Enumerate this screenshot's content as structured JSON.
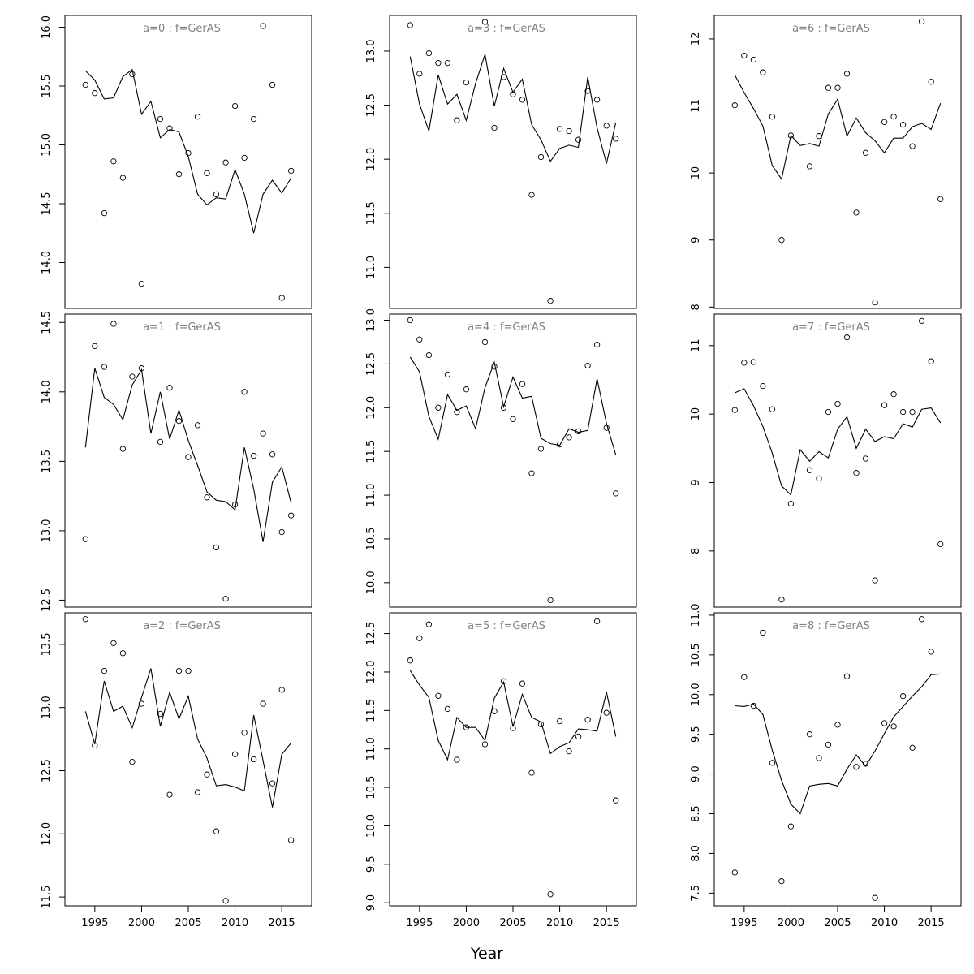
{
  "figure": {
    "xlabel": "Year"
  },
  "style": {
    "line_color": "#000000",
    "point_color": "#000000",
    "panel_title_color": "#808080",
    "frame_color": "#000000"
  },
  "chart_data": [
    {
      "type": "line",
      "title": "a=0  :  f=GerAS",
      "x": [
        1994,
        1995,
        1996,
        1997,
        1998,
        1999,
        2000,
        2001,
        2002,
        2003,
        2004,
        2005,
        2006,
        2007,
        2008,
        2009,
        2010,
        2011,
        2012,
        2013,
        2014,
        2015,
        2016
      ],
      "series": [
        {
          "kind": "points",
          "values": [
            15.51,
            15.44,
            14.42,
            14.86,
            14.72,
            15.6,
            13.82,
            null,
            15.22,
            15.14,
            14.75,
            14.93,
            15.24,
            14.76,
            14.58,
            14.85,
            15.33,
            14.89,
            15.22,
            16.01,
            15.51,
            13.7,
            14.78
          ]
        },
        {
          "kind": "line",
          "values": [
            15.63,
            15.55,
            15.39,
            15.4,
            15.58,
            15.64,
            15.26,
            15.37,
            15.06,
            15.13,
            15.11,
            14.9,
            14.58,
            14.49,
            14.55,
            14.54,
            14.79,
            14.58,
            14.25,
            14.58,
            14.7,
            14.59,
            14.72
          ]
        }
      ],
      "xlim": [
        1991.8,
        2018.2
      ],
      "ylim": [
        13.61,
        16.1
      ],
      "yticks": [
        "14.0",
        "14.5",
        "15.0",
        "15.5",
        "16.0"
      ],
      "xticks": [],
      "grid": false
    },
    {
      "type": "line",
      "title": "a=3  :  f=GerAS",
      "x": [
        1994,
        1995,
        1996,
        1997,
        1998,
        1999,
        2000,
        2001,
        2002,
        2003,
        2004,
        2005,
        2006,
        2007,
        2008,
        2009,
        2010,
        2011,
        2012,
        2013,
        2014,
        2015,
        2016
      ],
      "series": [
        {
          "kind": "points",
          "values": [
            13.24,
            12.79,
            12.98,
            12.89,
            12.89,
            12.36,
            12.71,
            null,
            13.27,
            12.29,
            12.76,
            12.6,
            12.55,
            11.67,
            12.02,
            10.69,
            12.28,
            12.26,
            12.18,
            12.63,
            12.55,
            12.31,
            12.19
          ]
        },
        {
          "kind": "line",
          "values": [
            12.95,
            12.51,
            12.26,
            12.78,
            12.51,
            12.6,
            12.36,
            12.7,
            12.97,
            12.49,
            12.84,
            12.62,
            12.74,
            12.32,
            12.18,
            11.98,
            12.1,
            12.13,
            12.11,
            12.76,
            12.29,
            11.96,
            12.34
          ]
        }
      ],
      "xlim": [
        1991.8,
        2018.2
      ],
      "ylim": [
        10.62,
        13.33
      ],
      "yticks": [
        "11.0",
        "11.5",
        "12.0",
        "12.5",
        "13.0"
      ],
      "xticks": [],
      "grid": false
    },
    {
      "type": "line",
      "title": "a=6  :  f=GerAS",
      "x": [
        1994,
        1995,
        1996,
        1997,
        1998,
        1999,
        2000,
        2001,
        2002,
        2003,
        2004,
        2005,
        2006,
        2007,
        2008,
        2009,
        2010,
        2011,
        2012,
        2013,
        2014,
        2015,
        2016
      ],
      "series": [
        {
          "kind": "points",
          "values": [
            11.01,
            11.75,
            11.69,
            11.5,
            10.84,
            9.0,
            10.56,
            null,
            10.1,
            10.55,
            11.27,
            11.27,
            11.48,
            9.41,
            10.3,
            8.07,
            10.76,
            10.84,
            10.72,
            10.4,
            12.26,
            11.36,
            9.61
          ]
        },
        {
          "kind": "line",
          "values": [
            11.46,
            11.2,
            10.96,
            10.7,
            10.11,
            9.91,
            10.56,
            10.41,
            10.44,
            10.4,
            10.88,
            11.1,
            10.55,
            10.82,
            10.6,
            10.48,
            10.3,
            10.52,
            10.52,
            10.69,
            10.74,
            10.65,
            11.04
          ]
        }
      ],
      "xlim": [
        1991.8,
        2018.2
      ],
      "ylim": [
        7.98,
        12.35
      ],
      "yticks": [
        "8",
        "9",
        "10",
        "11",
        "12"
      ],
      "xticks": [],
      "grid": false
    },
    {
      "type": "line",
      "title": "a=1  :  f=GerAS",
      "x": [
        1994,
        1995,
        1996,
        1997,
        1998,
        1999,
        2000,
        2001,
        2002,
        2003,
        2004,
        2005,
        2006,
        2007,
        2008,
        2009,
        2010,
        2011,
        2012,
        2013,
        2014,
        2015,
        2016
      ],
      "series": [
        {
          "kind": "points",
          "values": [
            12.94,
            14.33,
            14.18,
            14.49,
            13.59,
            14.11,
            14.17,
            null,
            13.64,
            14.03,
            13.79,
            13.53,
            13.76,
            13.24,
            12.88,
            12.51,
            13.19,
            14.0,
            13.54,
            13.7,
            13.55,
            12.99,
            13.11
          ]
        },
        {
          "kind": "line",
          "values": [
            13.6,
            14.17,
            13.96,
            13.91,
            13.8,
            14.05,
            14.16,
            13.7,
            14.0,
            13.66,
            13.87,
            13.65,
            13.47,
            13.28,
            13.22,
            13.21,
            13.15,
            13.6,
            13.3,
            12.92,
            13.35,
            13.46,
            13.2
          ]
        }
      ],
      "xlim": [
        1991.8,
        2018.2
      ],
      "ylim": [
        12.45,
        14.56
      ],
      "yticks": [
        "12.5",
        "13.0",
        "13.5",
        "14.0",
        "14.5"
      ],
      "xticks": [],
      "grid": false
    },
    {
      "type": "line",
      "title": "a=4  :  f=GerAS",
      "x": [
        1994,
        1995,
        1996,
        1997,
        1998,
        1999,
        2000,
        2001,
        2002,
        2003,
        2004,
        2005,
        2006,
        2007,
        2008,
        2009,
        2010,
        2011,
        2012,
        2013,
        2014,
        2015,
        2016
      ],
      "series": [
        {
          "kind": "points",
          "values": [
            13.0,
            12.78,
            12.6,
            12.0,
            12.38,
            11.95,
            12.21,
            null,
            12.75,
            12.47,
            12.0,
            11.87,
            12.27,
            11.25,
            11.53,
            9.8,
            11.58,
            11.66,
            11.73,
            12.48,
            12.72,
            11.77,
            11.02
          ]
        },
        {
          "kind": "line",
          "values": [
            12.58,
            12.41,
            11.9,
            11.64,
            12.15,
            11.97,
            12.02,
            11.76,
            12.23,
            12.52,
            12.01,
            12.35,
            12.11,
            12.13,
            11.65,
            11.59,
            11.57,
            11.76,
            11.72,
            11.74,
            12.33,
            11.82,
            11.46
          ]
        }
      ],
      "xlim": [
        1991.8,
        2018.2
      ],
      "ylim": [
        9.72,
        13.07
      ],
      "yticks": [
        "10.0",
        "10.5",
        "11.0",
        "11.5",
        "12.0",
        "12.5",
        "13.0"
      ],
      "xticks": [],
      "grid": false
    },
    {
      "type": "line",
      "title": "a=7  :  f=GerAS",
      "x": [
        1994,
        1995,
        1996,
        1997,
        1998,
        1999,
        2000,
        2001,
        2002,
        2003,
        2004,
        2005,
        2006,
        2007,
        2008,
        2009,
        2010,
        2011,
        2012,
        2013,
        2014,
        2015,
        2016
      ],
      "series": [
        {
          "kind": "points",
          "values": [
            10.06,
            10.75,
            10.76,
            10.41,
            10.07,
            7.29,
            8.69,
            null,
            9.18,
            9.06,
            10.03,
            10.15,
            11.12,
            9.14,
            9.35,
            7.57,
            10.13,
            10.29,
            10.03,
            10.03,
            11.36,
            10.77,
            8.1
          ]
        },
        {
          "kind": "line",
          "values": [
            10.31,
            10.37,
            10.12,
            9.82,
            9.43,
            8.95,
            8.82,
            9.48,
            9.31,
            9.45,
            9.36,
            9.78,
            9.96,
            9.5,
            9.78,
            9.6,
            9.67,
            9.64,
            9.86,
            9.81,
            10.07,
            10.09,
            9.87
          ]
        }
      ],
      "xlim": [
        1991.8,
        2018.2
      ],
      "ylim": [
        7.18,
        11.46
      ],
      "yticks": [
        "8",
        "9",
        "10",
        "11"
      ],
      "xticks": [],
      "grid": false
    },
    {
      "type": "line",
      "title": "a=2  :  f=GerAS",
      "x": [
        1994,
        1995,
        1996,
        1997,
        1998,
        1999,
        2000,
        2001,
        2002,
        2003,
        2004,
        2005,
        2006,
        2007,
        2008,
        2009,
        2010,
        2011,
        2012,
        2013,
        2014,
        2015,
        2016
      ],
      "series": [
        {
          "kind": "points",
          "values": [
            13.7,
            12.7,
            13.29,
            13.51,
            13.43,
            12.57,
            13.03,
            null,
            12.95,
            12.31,
            13.29,
            13.29,
            12.33,
            12.47,
            12.02,
            11.47,
            12.63,
            12.8,
            12.59,
            13.03,
            12.4,
            13.14,
            11.95
          ]
        },
        {
          "kind": "line",
          "values": [
            12.97,
            12.71,
            13.21,
            12.97,
            13.01,
            12.84,
            13.08,
            13.31,
            12.85,
            13.12,
            12.91,
            13.09,
            12.75,
            12.6,
            12.38,
            12.39,
            12.37,
            12.34,
            12.94,
            12.58,
            12.21,
            12.63,
            12.72
          ]
        }
      ],
      "xlim": [
        1991.8,
        2018.2
      ],
      "ylim": [
        11.43,
        13.75
      ],
      "yticks": [
        "11.5",
        "12.0",
        "12.5",
        "13.0",
        "13.5"
      ],
      "xticks": [
        "1995",
        "2000",
        "2005",
        "2010",
        "2015"
      ],
      "grid": false
    },
    {
      "type": "line",
      "title": "a=5  :  f=GerAS",
      "x": [
        1994,
        1995,
        1996,
        1997,
        1998,
        1999,
        2000,
        2001,
        2002,
        2003,
        2004,
        2005,
        2006,
        2007,
        2008,
        2009,
        2010,
        2011,
        2012,
        2013,
        2014,
        2015,
        2016
      ],
      "series": [
        {
          "kind": "points",
          "values": [
            12.15,
            12.44,
            12.62,
            11.69,
            11.52,
            10.86,
            11.28,
            null,
            11.06,
            11.49,
            11.88,
            11.27,
            11.85,
            10.69,
            11.32,
            9.11,
            11.36,
            10.97,
            11.16,
            11.38,
            12.66,
            11.47,
            10.33
          ]
        },
        {
          "kind": "line",
          "values": [
            12.02,
            11.83,
            11.67,
            11.11,
            10.86,
            11.41,
            11.28,
            11.28,
            11.11,
            11.66,
            11.87,
            11.29,
            11.71,
            11.41,
            11.35,
            10.94,
            11.03,
            11.08,
            11.26,
            11.25,
            11.23,
            11.74,
            11.16
          ]
        }
      ],
      "xlim": [
        1991.8,
        2018.2
      ],
      "ylim": [
        8.96,
        12.77
      ],
      "yticks": [
        "9.0",
        "9.5",
        "10.0",
        "10.5",
        "11.0",
        "11.5",
        "12.0",
        "12.5"
      ],
      "xticks": [
        "1995",
        "2000",
        "2005",
        "2010",
        "2015"
      ],
      "grid": false
    },
    {
      "type": "line",
      "title": "a=8  :  f=GerAS",
      "x": [
        1994,
        1995,
        1996,
        1997,
        1998,
        1999,
        2000,
        2001,
        2002,
        2003,
        2004,
        2005,
        2006,
        2007,
        2008,
        2009,
        2010,
        2011,
        2012,
        2013,
        2014,
        2015,
        2016
      ],
      "series": [
        {
          "kind": "points",
          "values": [
            7.76,
            10.22,
            9.86,
            10.78,
            9.14,
            7.65,
            8.34,
            null,
            9.5,
            9.2,
            9.37,
            9.62,
            10.23,
            9.09,
            9.13,
            7.44,
            9.64,
            9.6,
            9.98,
            9.33,
            10.95,
            10.54,
            null
          ]
        },
        {
          "kind": "line",
          "values": [
            9.86,
            9.85,
            9.88,
            9.75,
            9.3,
            8.92,
            8.62,
            8.5,
            8.85,
            8.87,
            8.88,
            8.85,
            9.06,
            9.24,
            9.1,
            9.29,
            9.51,
            9.72,
            9.85,
            9.98,
            10.1,
            10.25,
            10.26
          ]
        }
      ],
      "xlim": [
        1991.8,
        2018.2
      ],
      "ylim": [
        7.34,
        11.03
      ],
      "yticks": [
        "7.5",
        "8.0",
        "8.5",
        "9.0",
        "9.5",
        "10.0",
        "10.5",
        "11.0"
      ],
      "xticks": [
        "1995",
        "2000",
        "2005",
        "2010",
        "2015"
      ],
      "grid": false
    }
  ]
}
